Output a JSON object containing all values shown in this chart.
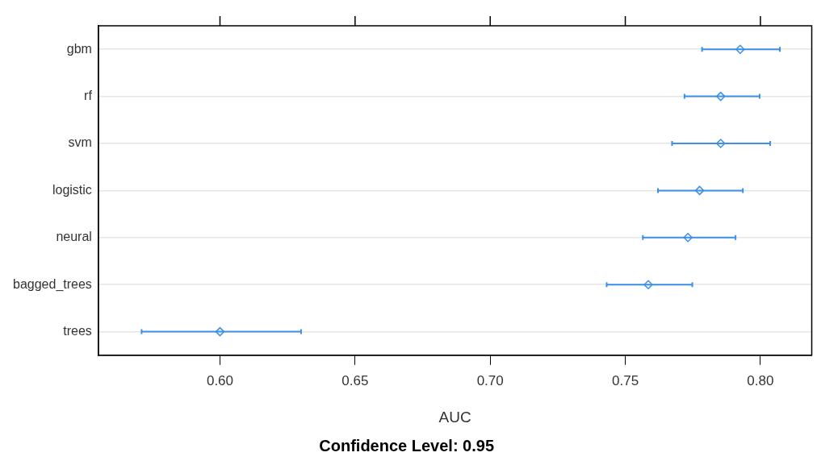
{
  "chart_data": {
    "type": "scatter",
    "orientation": "horizontal",
    "categories": [
      "gbm",
      "rf",
      "svm",
      "logistic",
      "neural",
      "bagged_trees",
      "trees"
    ],
    "color": "#3d8fe8",
    "values": [
      0.7925,
      0.7853,
      0.7853,
      0.7775,
      0.7732,
      0.7585,
      0.6
    ],
    "errors": [
      [
        0.7784,
        0.8072
      ],
      [
        0.7719,
        0.7997
      ],
      [
        0.7673,
        0.8036
      ],
      [
        0.7621,
        0.7935
      ],
      [
        0.7565,
        0.7908
      ],
      [
        0.7431,
        0.7748
      ],
      [
        0.571,
        0.63
      ]
    ],
    "xlim": [
      0.555,
      0.819
    ],
    "xticks": [
      {
        "value": 0.6,
        "label": "0.60"
      },
      {
        "value": 0.65,
        "label": "0.65"
      },
      {
        "value": 0.7,
        "label": "0.70"
      },
      {
        "value": 0.75,
        "label": "0.75"
      },
      {
        "value": 0.8,
        "label": "0.80"
      }
    ],
    "xlabel": "AUC",
    "annotations": [
      "Confidence Level: 0.95"
    ],
    "grid": "y",
    "legend": false,
    "marker": "diamond"
  }
}
